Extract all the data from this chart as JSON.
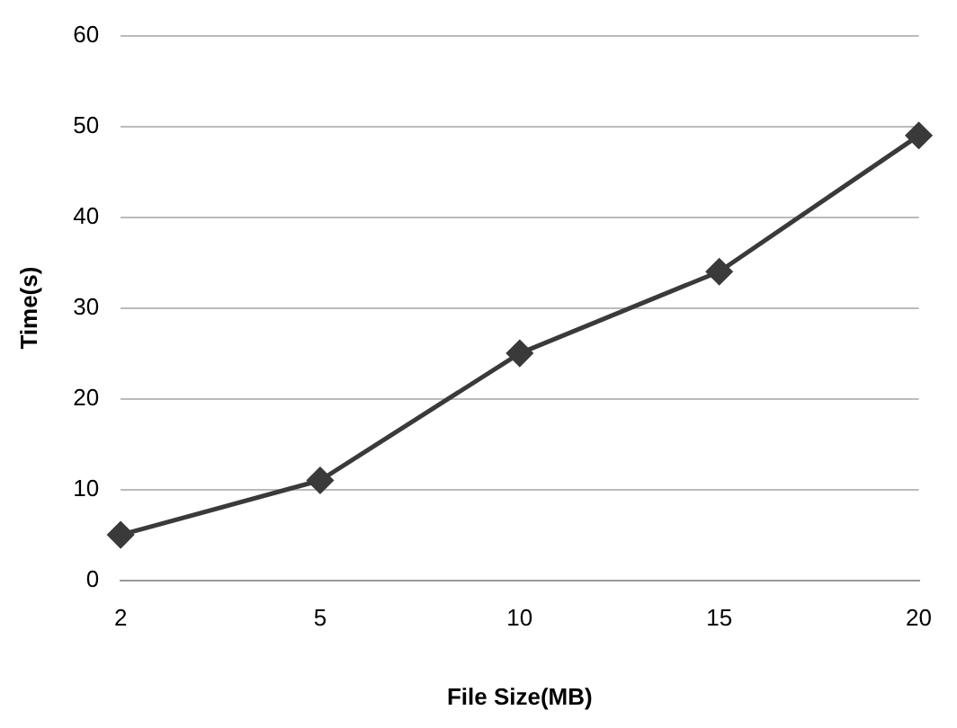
{
  "chart_data": {
    "type": "line",
    "xlabel": "File Size(MB)",
    "ylabel": "Time(s)",
    "categories": [
      "2",
      "5",
      "10",
      "15",
      "20"
    ],
    "series": [
      {
        "color": "#3a3a3a",
        "values": [
          5,
          11,
          25,
          34,
          49
        ]
      }
    ],
    "ylim": [
      0,
      60
    ],
    "yticks": [
      0,
      10,
      20,
      30,
      40,
      50,
      60
    ],
    "grid": "y",
    "legend": false,
    "marker": "diamond",
    "line_style": "solid"
  }
}
